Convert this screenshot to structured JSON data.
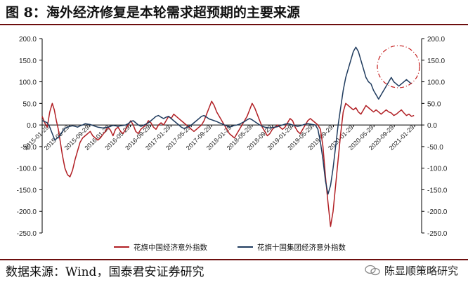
{
  "title": "图 8：海外经济修复是本轮需求超预期的主要来源",
  "source": "数据来源：Wind，国泰君安证券研究",
  "watermark": "陈显顺策略研究",
  "chart_data": {
    "type": "line",
    "y_left": {
      "lim": [
        -250,
        200
      ],
      "ticks": [
        "200.0",
        "150.0",
        "100.0",
        "50.0",
        "0.0",
        "-50.0",
        "-100.0",
        "-150.0",
        "-200.0",
        "-250.0"
      ]
    },
    "y_right": {
      "lim": [
        -250,
        200
      ],
      "ticks": [
        "200.0",
        "150.0",
        "100.0",
        "50.0",
        "0.0",
        "-50.0",
        "-100.0",
        "-150.0",
        "-200.0",
        "-250.0"
      ]
    },
    "x_ticks": [
      "2015-01-29",
      "2015-05-29",
      "2015-09-29",
      "2016-01-29",
      "2016-05-29",
      "2016-09-29",
      "2017-01-29",
      "2017-05-29",
      "2017-09-29",
      "2018-01-29",
      "2018-05-29",
      "2018-09-29",
      "2019-01-29",
      "2019-05-29",
      "2019-09-29",
      "2020-01-29",
      "2020-05-29",
      "2020-09-29",
      "2021-01-29"
    ],
    "x_range": [
      0,
      75
    ],
    "series": [
      {
        "name": "花旗中国经济意外指数",
        "color": "#b11f24",
        "points": [
          [
            0,
            20
          ],
          [
            0.5,
            5
          ],
          [
            1,
            -5
          ],
          [
            1.5,
            30
          ],
          [
            2,
            50
          ],
          [
            2.4,
            35
          ],
          [
            2.8,
            10
          ],
          [
            3.2,
            -10
          ],
          [
            3.6,
            -40
          ],
          [
            4,
            -70
          ],
          [
            4.5,
            -100
          ],
          [
            5,
            -115
          ],
          [
            5.5,
            -120
          ],
          [
            6,
            -105
          ],
          [
            6.5,
            -80
          ],
          [
            7,
            -60
          ],
          [
            7.5,
            -40
          ],
          [
            8,
            -30
          ],
          [
            8.5,
            -25
          ],
          [
            9,
            -20
          ],
          [
            9.5,
            -15
          ],
          [
            10,
            -25
          ],
          [
            10.5,
            -30
          ],
          [
            11,
            -35
          ],
          [
            11.5,
            -30
          ],
          [
            12,
            -22
          ],
          [
            12.5,
            -15
          ],
          [
            13,
            -5
          ],
          [
            13.5,
            -12
          ],
          [
            14,
            -25
          ],
          [
            14.5,
            -10
          ],
          [
            15,
            -5
          ],
          [
            15.5,
            -15
          ],
          [
            16,
            -20
          ],
          [
            16.5,
            -10
          ],
          [
            17,
            0
          ],
          [
            17.5,
            10
          ],
          [
            18,
            0
          ],
          [
            18.5,
            -15
          ],
          [
            19,
            -20
          ],
          [
            19.5,
            -10
          ],
          [
            20,
            -5
          ],
          [
            20.5,
            0
          ],
          [
            21,
            10
          ],
          [
            21.5,
            5
          ],
          [
            22,
            -5
          ],
          [
            22.5,
            -10
          ],
          [
            23,
            0
          ],
          [
            23.5,
            5
          ],
          [
            24,
            0
          ],
          [
            24.5,
            10
          ],
          [
            25,
            20
          ],
          [
            25.5,
            15
          ],
          [
            26,
            25
          ],
          [
            26.5,
            20
          ],
          [
            27,
            15
          ],
          [
            27.5,
            10
          ],
          [
            28,
            5
          ],
          [
            28.5,
            0
          ],
          [
            29,
            -5
          ],
          [
            29.5,
            -10
          ],
          [
            30,
            -15
          ],
          [
            30.5,
            -10
          ],
          [
            31,
            -5
          ],
          [
            31.5,
            0
          ],
          [
            32,
            10
          ],
          [
            32.5,
            25
          ],
          [
            33,
            40
          ],
          [
            33.5,
            55
          ],
          [
            34,
            45
          ],
          [
            34.5,
            30
          ],
          [
            35,
            20
          ],
          [
            35.5,
            10
          ],
          [
            36,
            0
          ],
          [
            36.5,
            -10
          ],
          [
            37,
            -20
          ],
          [
            37.5,
            -25
          ],
          [
            38,
            -30
          ],
          [
            38.5,
            -20
          ],
          [
            39,
            -10
          ],
          [
            39.5,
            0
          ],
          [
            40,
            10
          ],
          [
            40.5,
            20
          ],
          [
            41,
            35
          ],
          [
            41.5,
            50
          ],
          [
            42,
            40
          ],
          [
            42.5,
            25
          ],
          [
            43,
            10
          ],
          [
            43.5,
            -5
          ],
          [
            44,
            -15
          ],
          [
            44.5,
            -25
          ],
          [
            45,
            -20
          ],
          [
            45.5,
            -10
          ],
          [
            46,
            -5
          ],
          [
            46.5,
            0
          ],
          [
            47,
            -5
          ],
          [
            47.5,
            -10
          ],
          [
            48,
            -5
          ],
          [
            48.5,
            5
          ],
          [
            49,
            15
          ],
          [
            49.5,
            10
          ],
          [
            50,
            -5
          ],
          [
            50.5,
            -15
          ],
          [
            51,
            -20
          ],
          [
            51.5,
            -10
          ],
          [
            52,
            0
          ],
          [
            52.5,
            10
          ],
          [
            53,
            15
          ],
          [
            53.5,
            10
          ],
          [
            54,
            5
          ],
          [
            54.5,
            0
          ],
          [
            55,
            -10
          ],
          [
            55.5,
            -50
          ],
          [
            56,
            -120
          ],
          [
            56.5,
            -180
          ],
          [
            57,
            -235
          ],
          [
            57.5,
            -200
          ],
          [
            58,
            -140
          ],
          [
            58.5,
            -80
          ],
          [
            59,
            -20
          ],
          [
            59.5,
            30
          ],
          [
            60,
            50
          ],
          [
            60.5,
            45
          ],
          [
            61,
            40
          ],
          [
            61.5,
            35
          ],
          [
            62,
            40
          ],
          [
            62.5,
            30
          ],
          [
            63,
            25
          ],
          [
            63.5,
            35
          ],
          [
            64,
            45
          ],
          [
            64.5,
            40
          ],
          [
            65,
            35
          ],
          [
            65.5,
            30
          ],
          [
            66,
            35
          ],
          [
            66.5,
            30
          ],
          [
            67,
            25
          ],
          [
            67.5,
            30
          ],
          [
            68,
            35
          ],
          [
            68.5,
            30
          ],
          [
            69,
            28
          ],
          [
            69.5,
            22
          ],
          [
            70,
            25
          ],
          [
            70.5,
            30
          ],
          [
            71,
            35
          ],
          [
            71.5,
            28
          ],
          [
            72,
            22
          ],
          [
            72.5,
            25
          ],
          [
            73,
            20
          ],
          [
            73.5,
            22
          ]
        ]
      },
      {
        "name": "花旗十国集团经济意外指数",
        "color": "#1f3b5e",
        "points": [
          [
            0,
            10
          ],
          [
            0.5,
            8
          ],
          [
            1,
            5
          ],
          [
            1.5,
            -5
          ],
          [
            2,
            -20
          ],
          [
            2.5,
            -35
          ],
          [
            3,
            -30
          ],
          [
            3.5,
            -25
          ],
          [
            4,
            -15
          ],
          [
            4.5,
            -8
          ],
          [
            5,
            -5
          ],
          [
            5.5,
            -3
          ],
          [
            6,
            -2
          ],
          [
            6.5,
            -3
          ],
          [
            7,
            -5
          ],
          [
            7.5,
            -2
          ],
          [
            8,
            0
          ],
          [
            8.5,
            3
          ],
          [
            9,
            2
          ],
          [
            9.5,
            1
          ],
          [
            10,
            -1
          ],
          [
            10.5,
            -3
          ],
          [
            11,
            -5
          ],
          [
            11.5,
            -6
          ],
          [
            12,
            -7
          ],
          [
            12.5,
            -6
          ],
          [
            13,
            -5
          ],
          [
            13.5,
            -3
          ],
          [
            14,
            -1
          ],
          [
            14.5,
            -2
          ],
          [
            15,
            -3
          ],
          [
            15.5,
            -2
          ],
          [
            16,
            -1
          ],
          [
            16.5,
            0
          ],
          [
            17,
            3
          ],
          [
            17.5,
            8
          ],
          [
            18,
            10
          ],
          [
            18.5,
            5
          ],
          [
            19,
            0
          ],
          [
            19.5,
            -3
          ],
          [
            20,
            -1
          ],
          [
            20.5,
            2
          ],
          [
            21,
            5
          ],
          [
            21.5,
            10
          ],
          [
            22,
            15
          ],
          [
            22.5,
            20
          ],
          [
            23,
            22
          ],
          [
            23.5,
            18
          ],
          [
            24,
            15
          ],
          [
            24.5,
            18
          ],
          [
            25,
            20
          ],
          [
            25.5,
            15
          ],
          [
            26,
            10
          ],
          [
            26.5,
            5
          ],
          [
            27,
            0
          ],
          [
            27.5,
            -5
          ],
          [
            28,
            -8
          ],
          [
            28.5,
            -6
          ],
          [
            29,
            -3
          ],
          [
            29.5,
            0
          ],
          [
            30,
            5
          ],
          [
            30.5,
            10
          ],
          [
            31,
            15
          ],
          [
            31.5,
            20
          ],
          [
            32,
            22
          ],
          [
            32.5,
            18
          ],
          [
            33,
            14
          ],
          [
            33.5,
            12
          ],
          [
            34,
            10
          ],
          [
            34.5,
            8
          ],
          [
            35,
            5
          ],
          [
            35.5,
            3
          ],
          [
            36,
            0
          ],
          [
            36.5,
            -2
          ],
          [
            37,
            -5
          ],
          [
            37.5,
            -3
          ],
          [
            38,
            -1
          ],
          [
            38.5,
            0
          ],
          [
            39,
            2
          ],
          [
            39.5,
            5
          ],
          [
            40,
            8
          ],
          [
            40.5,
            12
          ],
          [
            41,
            15
          ],
          [
            41.5,
            12
          ],
          [
            42,
            8
          ],
          [
            42.5,
            4
          ],
          [
            43,
            0
          ],
          [
            43.5,
            -3
          ],
          [
            44,
            -5
          ],
          [
            44.5,
            -6
          ],
          [
            45,
            -7
          ],
          [
            45.5,
            -6
          ],
          [
            46,
            -5
          ],
          [
            46.5,
            -4
          ],
          [
            47,
            -2
          ],
          [
            47.5,
            0
          ],
          [
            48,
            2
          ],
          [
            48.5,
            3
          ],
          [
            49,
            2
          ],
          [
            49.5,
            0
          ],
          [
            50,
            -2
          ],
          [
            50.5,
            -3
          ],
          [
            51,
            -2
          ],
          [
            51.5,
            0
          ],
          [
            52,
            2
          ],
          [
            52.5,
            3
          ],
          [
            53,
            2
          ],
          [
            53.5,
            1
          ],
          [
            54,
            0
          ],
          [
            54.5,
            -10
          ],
          [
            55,
            -40
          ],
          [
            55.5,
            -80
          ],
          [
            56,
            -130
          ],
          [
            56.5,
            -160
          ],
          [
            57,
            -140
          ],
          [
            57.5,
            -100
          ],
          [
            58,
            -50
          ],
          [
            58.5,
            0
          ],
          [
            59,
            40
          ],
          [
            59.5,
            80
          ],
          [
            60,
            110
          ],
          [
            60.5,
            130
          ],
          [
            61,
            150
          ],
          [
            61.5,
            170
          ],
          [
            62,
            180
          ],
          [
            62.5,
            170
          ],
          [
            63,
            150
          ],
          [
            63.5,
            130
          ],
          [
            64,
            110
          ],
          [
            64.5,
            100
          ],
          [
            65,
            95
          ],
          [
            65.5,
            80
          ],
          [
            66,
            70
          ],
          [
            66.5,
            60
          ],
          [
            67,
            70
          ],
          [
            67.5,
            80
          ],
          [
            68,
            90
          ],
          [
            68.5,
            100
          ],
          [
            69,
            110
          ],
          [
            69.5,
            100
          ],
          [
            70,
            95
          ],
          [
            70.5,
            90
          ],
          [
            71,
            95
          ],
          [
            71.5,
            100
          ],
          [
            72,
            105
          ],
          [
            72.5,
            100
          ],
          [
            73,
            95
          ]
        ]
      }
    ],
    "legend": "bottom"
  }
}
